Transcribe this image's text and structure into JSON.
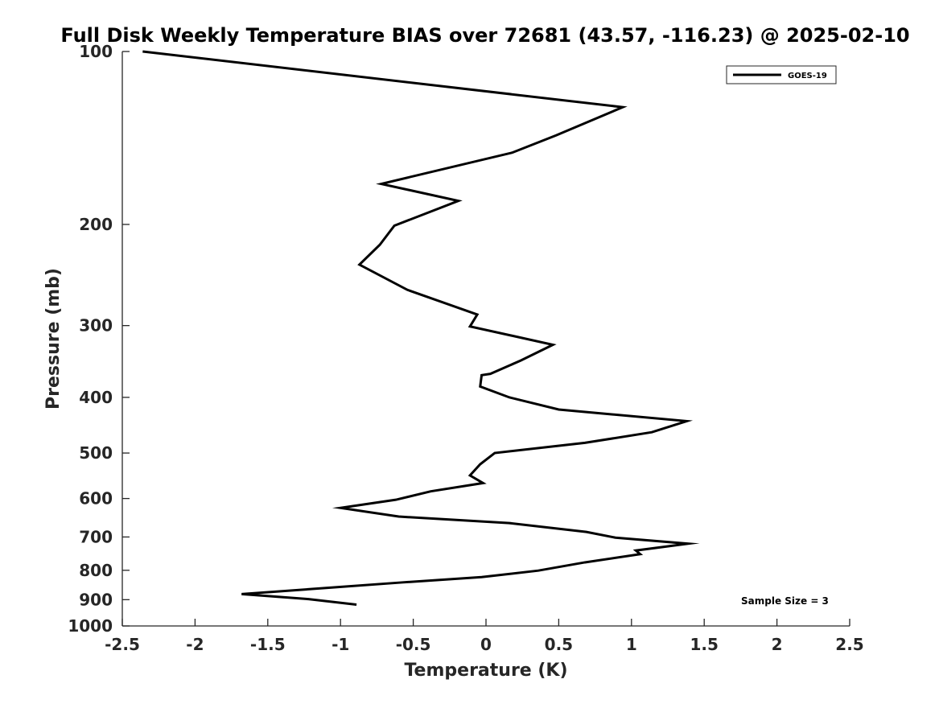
{
  "chart_data": {
    "type": "line",
    "title": "Full Disk Weekly Temperature BIAS over 72681 (43.57, -116.23) @ 2025-02-10",
    "xlabel": "Temperature (K)",
    "ylabel": "Pressure (mb)",
    "xlim": [
      -2.5,
      2.5
    ],
    "ylim": [
      100,
      1000
    ],
    "y_scale": "log",
    "y_direction": "reversed",
    "x_ticks": [
      "-2.5",
      "-2",
      "-1.5",
      "-1",
      "-0.5",
      "0",
      "0.5",
      "1",
      "1.5",
      "2",
      "2.5"
    ],
    "y_ticks": [
      "100",
      "200",
      "300",
      "400",
      "500",
      "600",
      "700",
      "800",
      "900",
      "1000"
    ],
    "grid": false,
    "legend_position": "top-right",
    "series": [
      {
        "name": "GOES-19",
        "color": "#000000",
        "points": [
          {
            "x": -2.36,
            "y": 100
          },
          {
            "x": 0.94,
            "y": 125
          },
          {
            "x": 0.48,
            "y": 140
          },
          {
            "x": 0.18,
            "y": 150
          },
          {
            "x": -0.72,
            "y": 170
          },
          {
            "x": -0.19,
            "y": 182
          },
          {
            "x": -0.63,
            "y": 201
          },
          {
            "x": -0.73,
            "y": 217
          },
          {
            "x": -0.87,
            "y": 235
          },
          {
            "x": -0.54,
            "y": 260
          },
          {
            "x": -0.06,
            "y": 287
          },
          {
            "x": -0.11,
            "y": 301
          },
          {
            "x": 0.46,
            "y": 324
          },
          {
            "x": 0.24,
            "y": 345
          },
          {
            "x": 0.03,
            "y": 364
          },
          {
            "x": -0.03,
            "y": 366
          },
          {
            "x": -0.04,
            "y": 383
          },
          {
            "x": 0.16,
            "y": 400
          },
          {
            "x": 0.5,
            "y": 420
          },
          {
            "x": 1.38,
            "y": 440
          },
          {
            "x": 1.14,
            "y": 460
          },
          {
            "x": 0.68,
            "y": 480
          },
          {
            "x": 0.06,
            "y": 500
          },
          {
            "x": -0.04,
            "y": 523
          },
          {
            "x": -0.11,
            "y": 547
          },
          {
            "x": -0.02,
            "y": 564
          },
          {
            "x": -0.38,
            "y": 583
          },
          {
            "x": -0.62,
            "y": 603
          },
          {
            "x": -1.0,
            "y": 623
          },
          {
            "x": -0.6,
            "y": 645
          },
          {
            "x": 0.16,
            "y": 662
          },
          {
            "x": 0.69,
            "y": 686
          },
          {
            "x": 0.89,
            "y": 702
          },
          {
            "x": 1.39,
            "y": 719
          },
          {
            "x": 1.03,
            "y": 739
          },
          {
            "x": 1.06,
            "y": 750
          },
          {
            "x": 0.68,
            "y": 775
          },
          {
            "x": 0.36,
            "y": 801
          },
          {
            "x": -0.03,
            "y": 822
          },
          {
            "x": -0.58,
            "y": 840
          },
          {
            "x": -1.08,
            "y": 858
          },
          {
            "x": -1.68,
            "y": 880
          },
          {
            "x": -1.22,
            "y": 898
          },
          {
            "x": -0.89,
            "y": 918
          }
        ]
      }
    ],
    "annotations": [
      "Sample Size = 3"
    ]
  }
}
